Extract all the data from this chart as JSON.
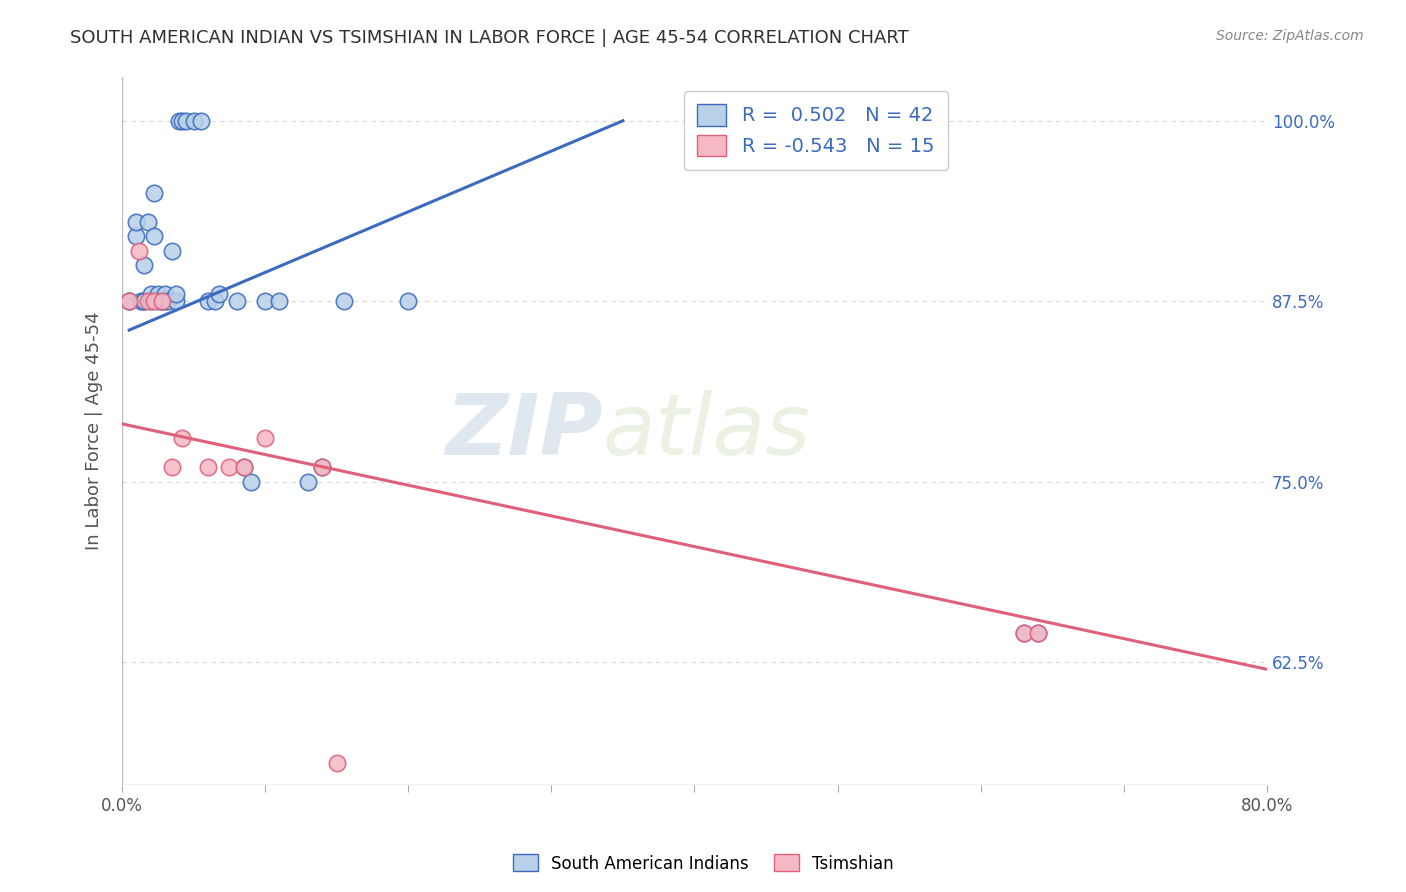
{
  "title": "SOUTH AMERICAN INDIAN VS TSIMSHIAN IN LABOR FORCE | AGE 45-54 CORRELATION CHART",
  "source": "Source: ZipAtlas.com",
  "ylabel": "In Labor Force | Age 45-54",
  "xlim": [
    0.0,
    0.8
  ],
  "ylim": [
    0.54,
    1.03
  ],
  "yticks": [
    0.625,
    0.75,
    0.875,
    1.0
  ],
  "ytick_labels": [
    "62.5%",
    "75.0%",
    "87.5%",
    "100.0%"
  ],
  "xticks": [
    0.0,
    0.1,
    0.2,
    0.3,
    0.4,
    0.5,
    0.6,
    0.7,
    0.8
  ],
  "xtick_labels": [
    "0.0%",
    "",
    "",
    "",
    "",
    "",
    "",
    "",
    "80.0%"
  ],
  "blue_R": 0.502,
  "blue_N": 42,
  "pink_R": -0.543,
  "pink_N": 15,
  "blue_color": "#b8d0e8",
  "pink_color": "#f5b8c4",
  "line_blue": "#3a6bbf",
  "line_pink": "#e0607a",
  "watermark_zip": "ZIP",
  "watermark_atlas": "atlas",
  "blue_scatter_x": [
    0.005,
    0.005,
    0.01,
    0.01,
    0.013,
    0.015,
    0.015,
    0.015,
    0.018,
    0.02,
    0.02,
    0.022,
    0.022,
    0.025,
    0.025,
    0.028,
    0.028,
    0.03,
    0.03,
    0.032,
    0.035,
    0.038,
    0.038,
    0.04,
    0.042,
    0.045,
    0.05,
    0.055,
    0.06,
    0.065,
    0.068,
    0.08,
    0.085,
    0.09,
    0.1,
    0.11,
    0.13,
    0.14,
    0.155,
    0.2,
    0.63,
    0.64
  ],
  "blue_scatter_y": [
    0.875,
    0.875,
    0.92,
    0.93,
    0.875,
    0.9,
    0.875,
    0.875,
    0.93,
    0.875,
    0.88,
    0.92,
    0.95,
    0.875,
    0.88,
    0.875,
    0.875,
    0.875,
    0.88,
    0.875,
    0.91,
    0.875,
    0.88,
    1.0,
    1.0,
    1.0,
    1.0,
    1.0,
    0.875,
    0.875,
    0.88,
    0.875,
    0.76,
    0.75,
    0.875,
    0.875,
    0.75,
    0.76,
    0.875,
    0.875,
    0.645,
    0.645
  ],
  "pink_scatter_x": [
    0.005,
    0.012,
    0.018,
    0.022,
    0.028,
    0.035,
    0.042,
    0.06,
    0.075,
    0.085,
    0.1,
    0.14,
    0.15,
    0.63,
    0.64
  ],
  "pink_scatter_y": [
    0.875,
    0.91,
    0.875,
    0.875,
    0.875,
    0.76,
    0.78,
    0.76,
    0.76,
    0.76,
    0.78,
    0.76,
    0.555,
    0.645,
    0.645
  ],
  "blue_line_x": [
    0.005,
    0.35
  ],
  "blue_line_y": [
    0.855,
    1.0
  ],
  "pink_line_x": [
    0.0,
    0.8
  ],
  "pink_line_y": [
    0.79,
    0.62
  ],
  "background_color": "#ffffff",
  "grid_color": "#d8d8d8",
  "title_color": "#303030",
  "axis_label_color": "#555555",
  "right_tick_color": "#3a6bbf",
  "legend_color": "#3a6bbf"
}
